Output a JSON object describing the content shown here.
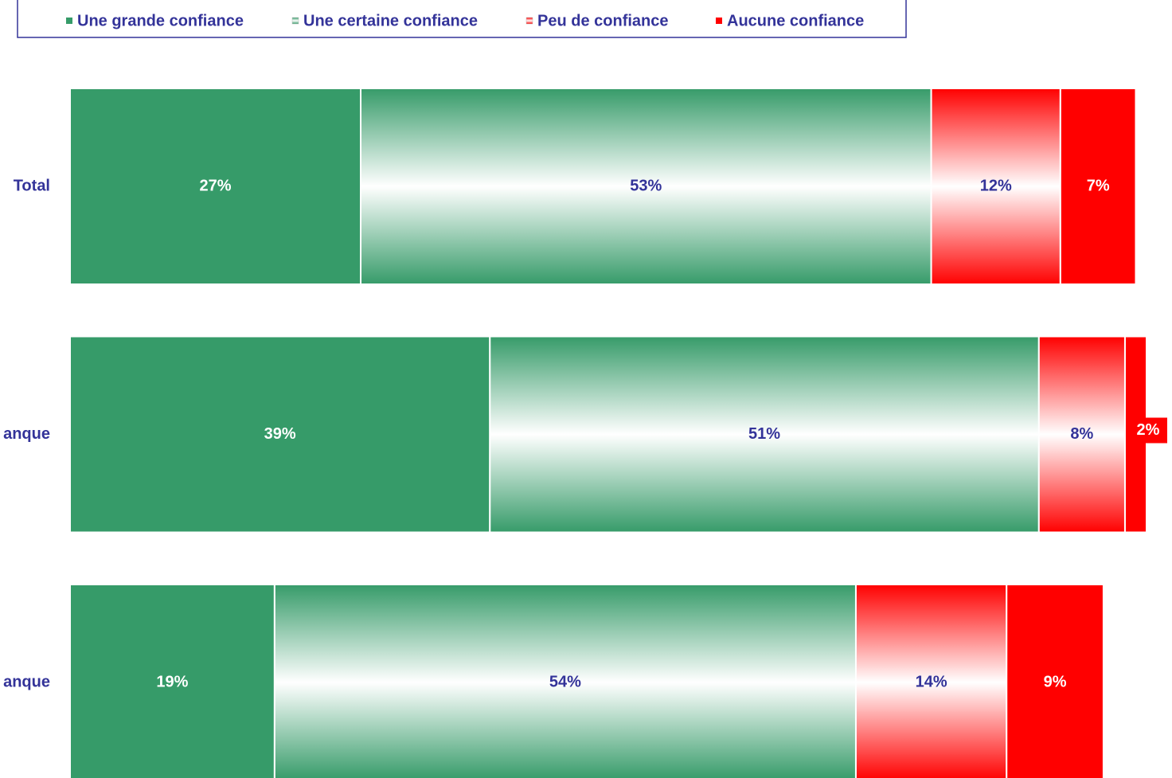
{
  "chart_data": {
    "type": "stacked-bar-horizontal",
    "categories": [
      "Total",
      "anque",
      "anque"
    ],
    "xlim": [
      0,
      100
    ],
    "legend": "top",
    "series": [
      {
        "name": "Une grande confiance",
        "color": "#369b69",
        "gradient": false,
        "label_color": "#ffffff",
        "values": [
          27,
          39,
          19
        ],
        "value_labels": [
          "27%",
          "39%",
          "19%"
        ]
      },
      {
        "name": "Une certaine confiance",
        "color": "#369b69",
        "gradient": true,
        "label_color": "#333399",
        "values": [
          53,
          51,
          54
        ],
        "value_labels": [
          "53%",
          "51%",
          "54%"
        ]
      },
      {
        "name": "Peu de confiance",
        "color": "#ff0000",
        "gradient": true,
        "label_color": "#333399",
        "values": [
          12,
          8,
          14
        ],
        "value_labels": [
          "12%",
          "8%",
          "14%"
        ]
      },
      {
        "name": "Aucune confiance",
        "color": "#ff0000",
        "gradient": false,
        "label_color": "#ffffff",
        "values": [
          7,
          2,
          9
        ],
        "value_labels": [
          "7%",
          "2%",
          "9%"
        ]
      }
    ]
  }
}
